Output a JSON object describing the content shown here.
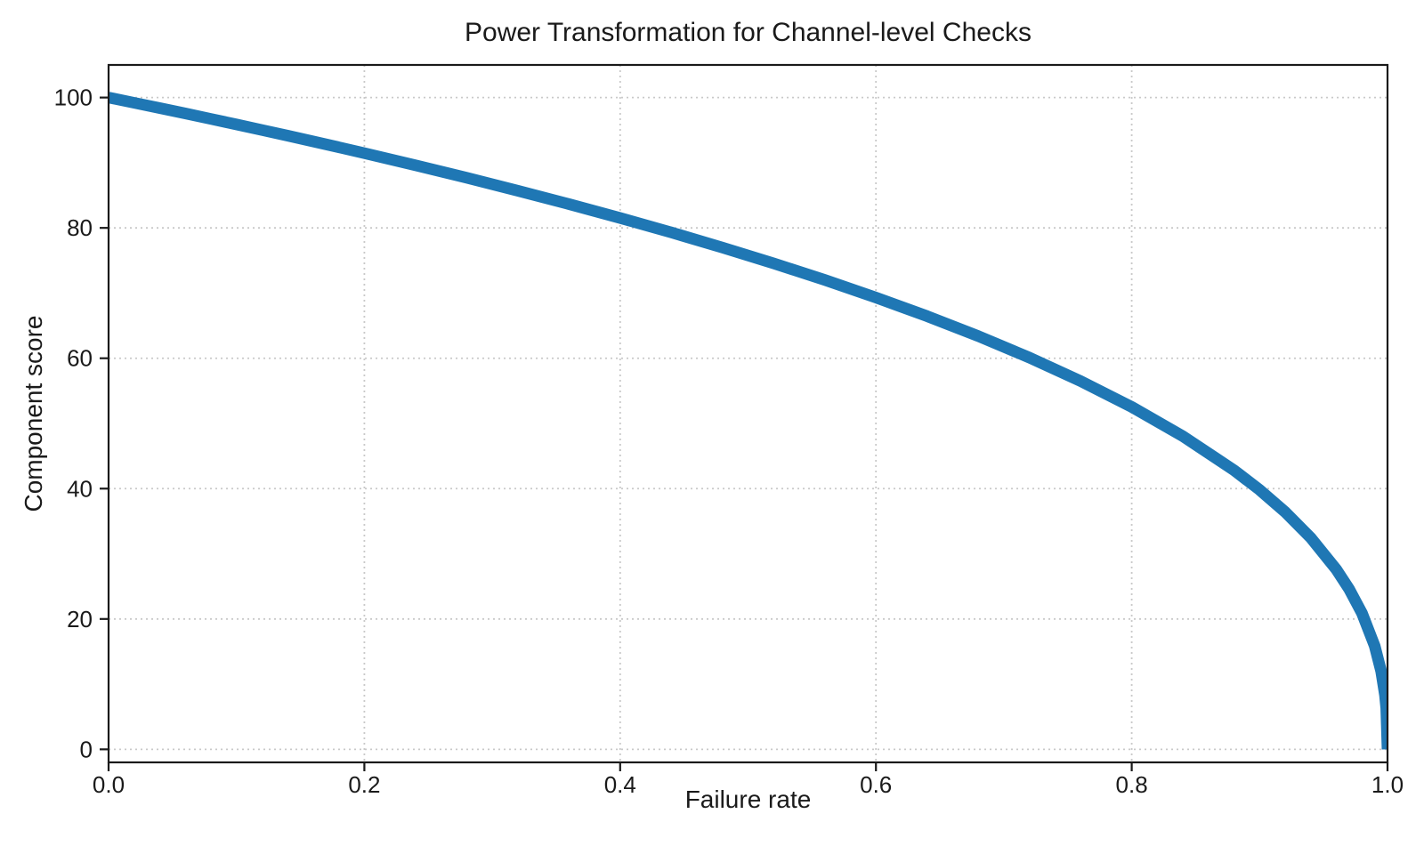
{
  "chart_data": {
    "type": "line",
    "title": "Power Transformation for Channel-level Checks",
    "xlabel": "Failure rate",
    "ylabel": "Component score",
    "xlim": [
      0,
      1
    ],
    "ylim": [
      -2,
      105
    ],
    "x_ticks": [
      0,
      0.2,
      0.4,
      0.6,
      0.8,
      1
    ],
    "x_tick_labels": [
      "0.0",
      "0.2",
      "0.4",
      "0.6",
      "0.8",
      "1.0"
    ],
    "y_ticks": [
      0,
      20,
      40,
      60,
      80,
      100
    ],
    "y_tick_labels": [
      "0",
      "20",
      "40",
      "60",
      "80",
      "100"
    ],
    "grid": {
      "visible": true,
      "style": "dotted",
      "color": "#c9c9c9"
    },
    "legend": "none",
    "line_color": "#1f77b4",
    "line_width": 13,
    "axes_color": "#1a1a1a",
    "formula": "y = 100 * (1 - x)^0.4",
    "series": [
      {
        "x": [
          0,
          0.02,
          0.04,
          0.06,
          0.08,
          0.1,
          0.12,
          0.14,
          0.16,
          0.18,
          0.2,
          0.24,
          0.28,
          0.32,
          0.36,
          0.4,
          0.44,
          0.48,
          0.52,
          0.56,
          0.6,
          0.64,
          0.68,
          0.72,
          0.76,
          0.8,
          0.84,
          0.88,
          0.9,
          0.92,
          0.94,
          0.96,
          0.97,
          0.98,
          0.99,
          0.995,
          0.998,
          0.999,
          1.0
        ],
        "y": [
          100,
          99.19,
          98.38,
          97.56,
          96.72,
          95.87,
          95.01,
          94.15,
          93.26,
          92.37,
          91.46,
          89.6,
          87.69,
          85.7,
          83.65,
          81.52,
          79.3,
          76.98,
          74.56,
          72.01,
          69.31,
          66.46,
          63.4,
          60.1,
          56.5,
          52.53,
          48.04,
          42.82,
          39.81,
          36.41,
          32.45,
          27.59,
          24.59,
          20.91,
          15.85,
          12.01,
          8.33,
          6.31,
          0
        ]
      }
    ]
  }
}
